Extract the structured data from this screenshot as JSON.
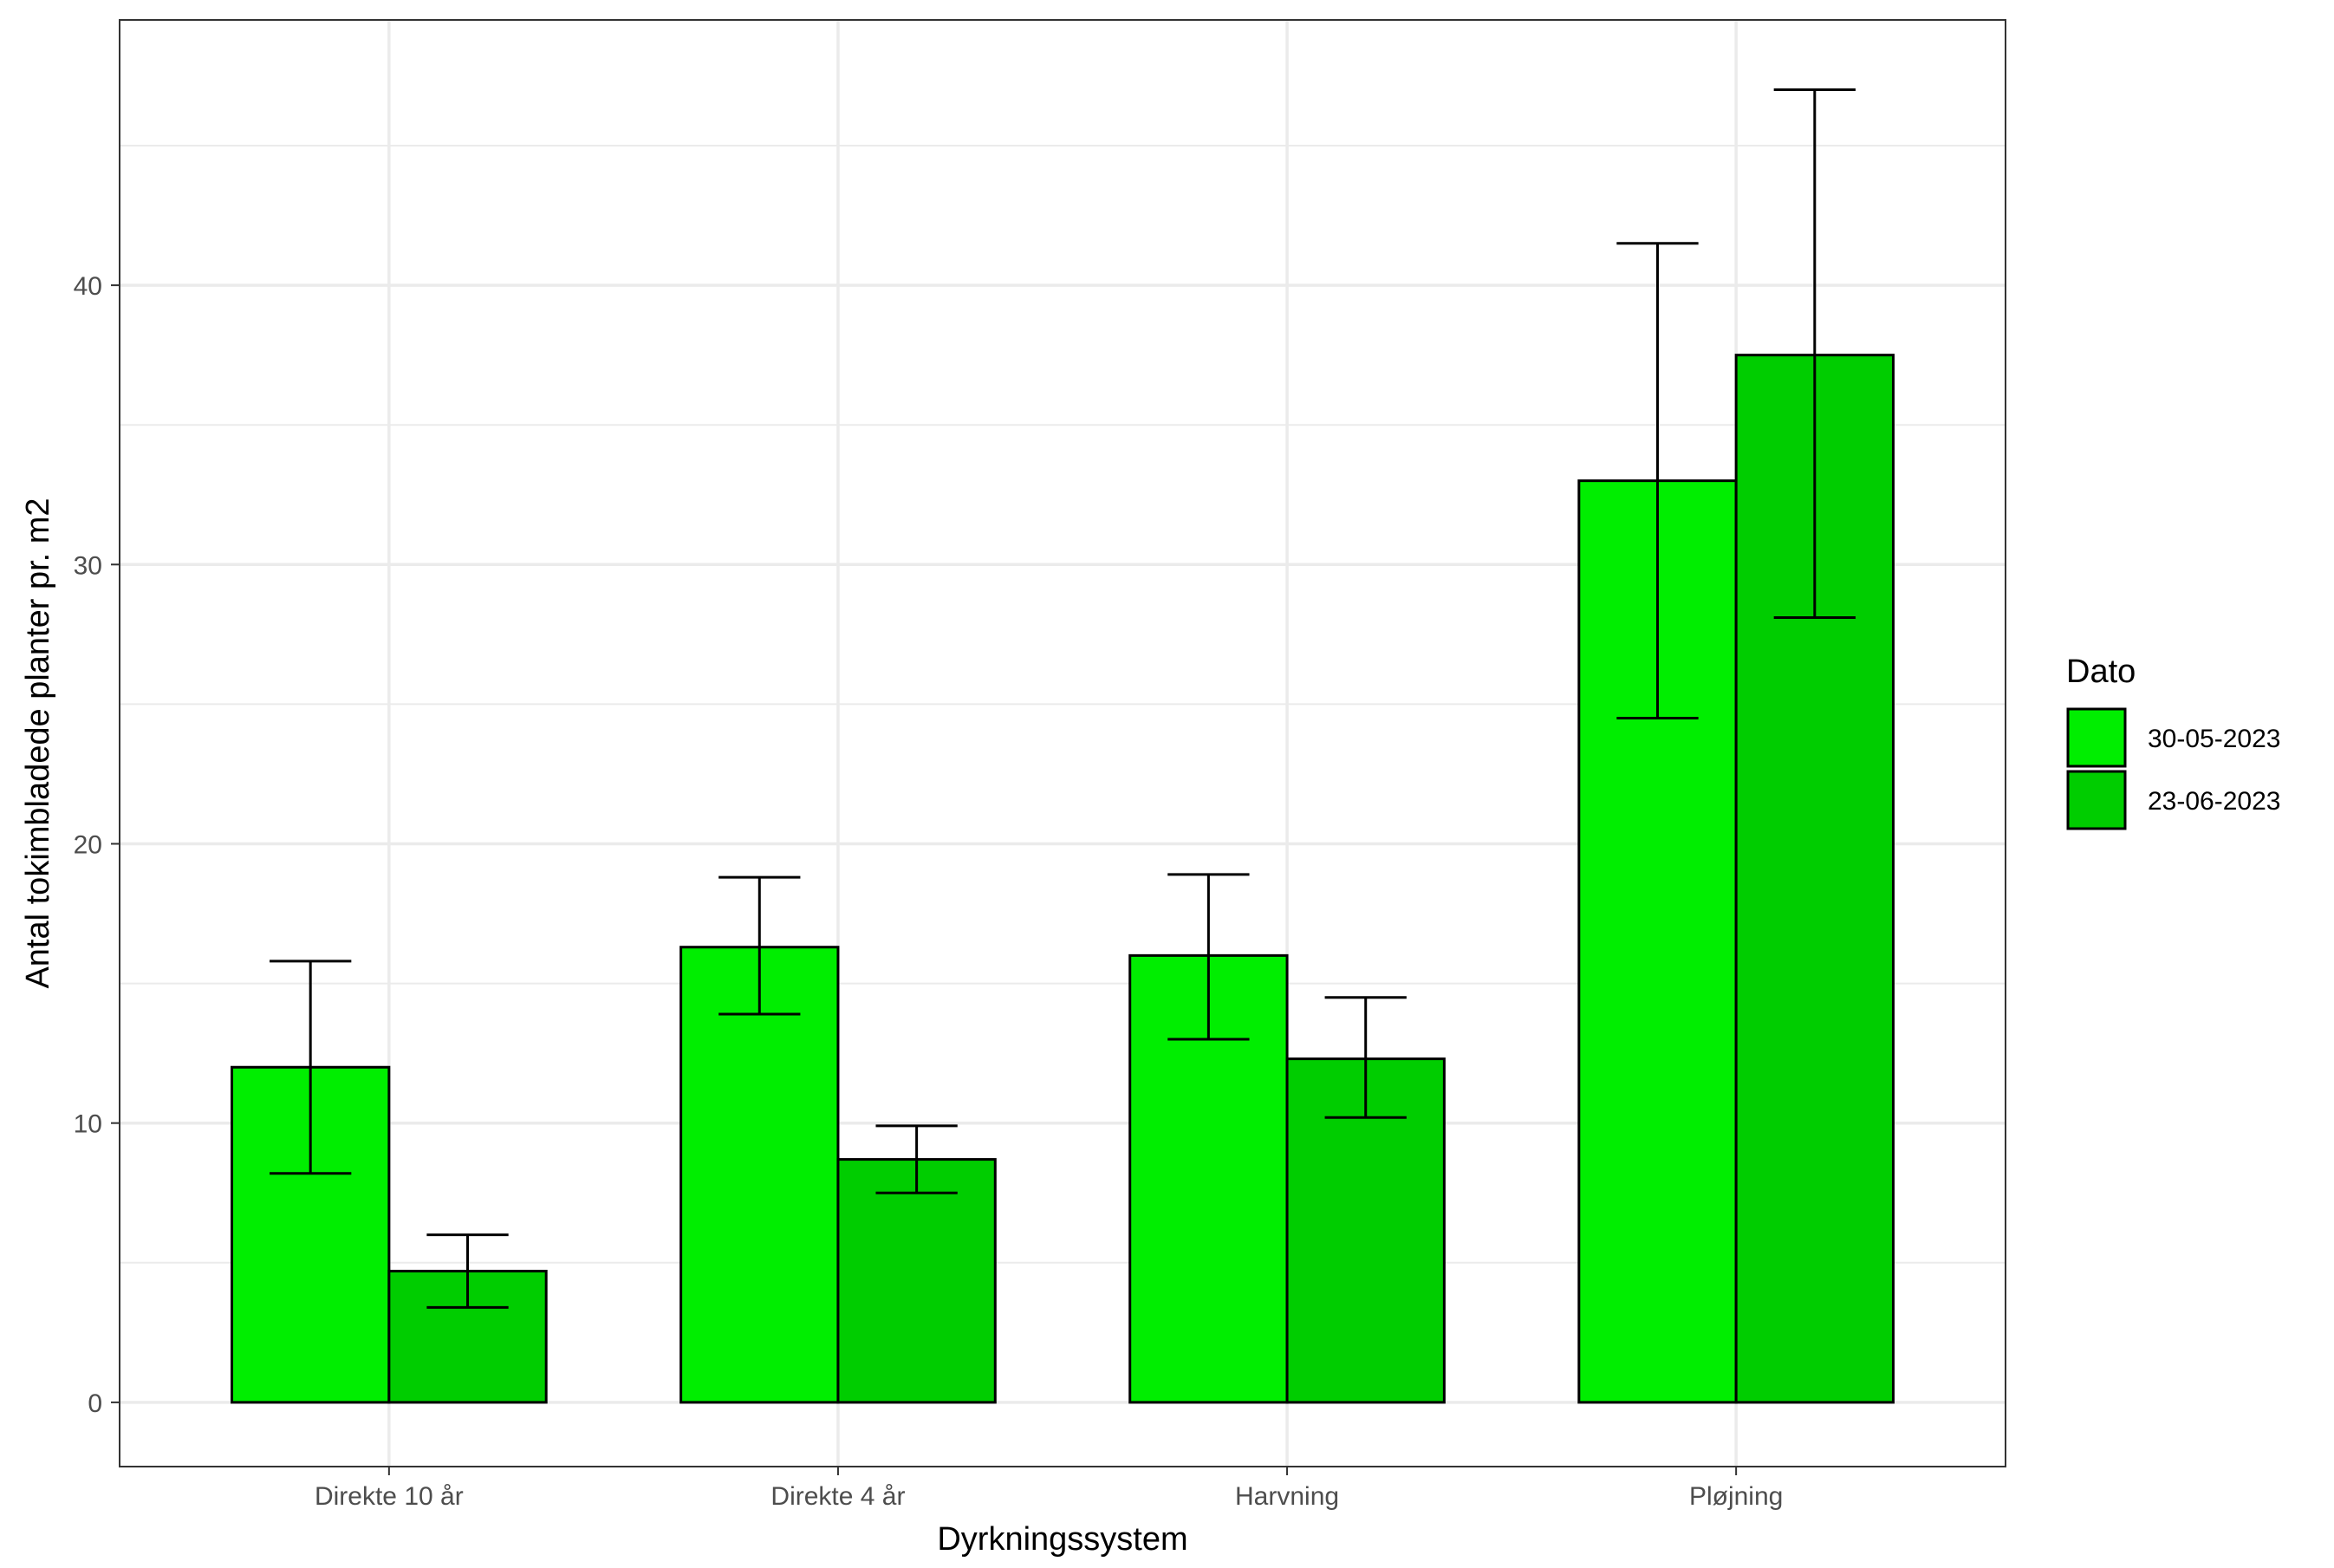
{
  "chart_data": {
    "type": "bar",
    "title": "",
    "xlabel": "Dyrkningssystem",
    "ylabel": "Antal tokimbladede planter pr. m2",
    "categories": [
      "Direkte 10 år",
      "Direkte 4 år",
      "Harvning",
      "Pløjning"
    ],
    "ylim": [
      -2.3,
      49.5
    ],
    "y_ticks": [
      0,
      10,
      20,
      30,
      40
    ],
    "y_tick_labels": [
      "0",
      "10",
      "20",
      "30",
      "40"
    ],
    "grid": true,
    "legend": {
      "title": "Dato",
      "position": "right"
    },
    "series": [
      {
        "name": "30-05-2023",
        "color": "#00EE00",
        "values": [
          12.0,
          16.3,
          16.0,
          33.0
        ],
        "error_low": [
          8.2,
          13.9,
          13.0,
          24.5
        ],
        "error_high": [
          15.8,
          18.8,
          18.9,
          41.5
        ]
      },
      {
        "name": "23-06-2023",
        "color": "#00CD00",
        "values": [
          4.7,
          8.7,
          12.3,
          37.5
        ],
        "error_low": [
          3.4,
          7.5,
          10.2,
          28.1
        ],
        "error_high": [
          6.0,
          9.9,
          14.5,
          47.0
        ]
      }
    ]
  }
}
